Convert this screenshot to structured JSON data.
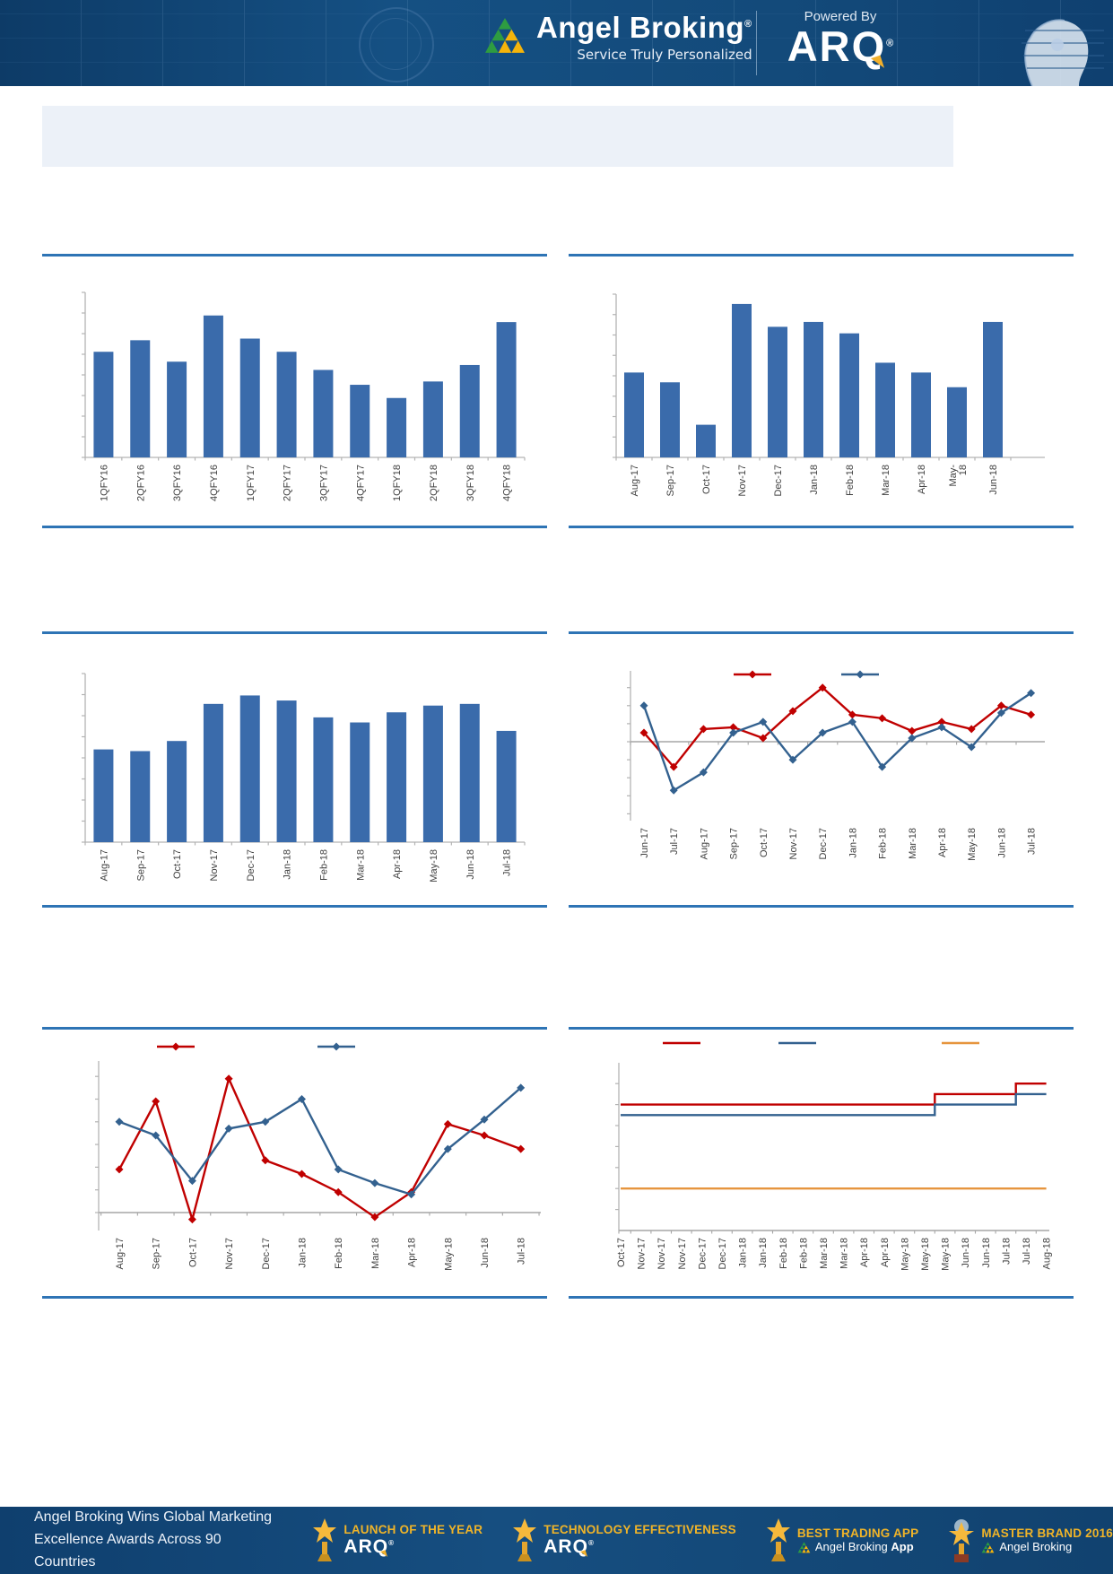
{
  "header": {
    "brand": "Angel Broking",
    "brand_reg": "®",
    "tagline": "Service Truly Personalized",
    "powered_by": "Powered By",
    "product": "ARQ",
    "product_reg": "®"
  },
  "banner": {
    "text": ""
  },
  "charts": [
    {
      "id": "quarterly-bar-chart",
      "type": "bar",
      "title": "",
      "bar_color": "#3a6bab",
      "categories": [
        "1QFY16",
        "2QFY16",
        "3QFY16",
        "4QFY16",
        "1QFY17",
        "2QFY17",
        "3QFY17",
        "4QFY17",
        "1QFY18",
        "2QFY18",
        "3QFY18",
        "4QFY18"
      ],
      "values": [
        64,
        71,
        58,
        86,
        72,
        64,
        53,
        44,
        36,
        46,
        56,
        82
      ],
      "ylabel": "",
      "ylim": [
        0,
        100
      ],
      "note": "values are relative bar heights in % of plot height; y-axis has unlabeled ticks"
    },
    {
      "id": "monthly-bar-chart-a",
      "type": "bar",
      "title": "",
      "bar_color": "#3a6bab",
      "categories": [
        "Aug-17",
        "Sep-17",
        "Oct-17",
        "Nov-17",
        "Dec-17",
        "Jan-18",
        "Feb-18",
        "Mar-18",
        "Apr-18",
        "May-\n18",
        "Jun-18"
      ],
      "values": [
        52,
        46,
        20,
        94,
        80,
        83,
        76,
        58,
        52,
        43,
        83
      ],
      "ylabel": "",
      "ylim": [
        0,
        100
      ],
      "note": "values are relative bar heights in % of plot height; y-axis has unlabeled ticks"
    },
    {
      "id": "monthly-bar-chart-b",
      "type": "bar",
      "title": "",
      "bar_color": "#3a6bab",
      "categories": [
        "Aug-17",
        "Sep-17",
        "Oct-17",
        "Nov-17",
        "Dec-17",
        "Jan-18",
        "Feb-18",
        "Mar-18",
        "Apr-18",
        "May-18",
        "Jun-18",
        "Jul-18"
      ],
      "values": [
        55,
        54,
        60,
        82,
        87,
        84,
        74,
        71,
        77,
        81,
        82,
        66
      ],
      "ylabel": "",
      "ylim": [
        0,
        100
      ],
      "note": "values are relative bar heights in % of plot height; y-axis has unlabeled ticks"
    },
    {
      "id": "dual-line-chart-a",
      "type": "line",
      "title": "",
      "categories": [
        "Jun-17",
        "Jul-17",
        "Aug-17",
        "Sep-17",
        "Oct-17",
        "Nov-17",
        "Dec-17",
        "Jan-18",
        "Feb-18",
        "Mar-18",
        "Apr-18",
        "May-18",
        "Jun-18",
        "Jul-18"
      ],
      "series": [
        {
          "name": "series-red",
          "color": "#c00000",
          "marker": "diamond",
          "values": [
            0.5,
            -1.4,
            0.7,
            0.8,
            0.2,
            1.7,
            3.0,
            1.5,
            1.3,
            0.6,
            1.1,
            0.7,
            2.0,
            1.5
          ]
        },
        {
          "name": "series-blue",
          "color": "#33618f",
          "marker": "diamond",
          "values": [
            2.0,
            -2.7,
            -1.7,
            0.5,
            1.1,
            -1.0,
            0.5,
            1.1,
            -1.4,
            0.2,
            0.8,
            -0.3,
            1.6,
            2.7
          ]
        }
      ],
      "zero_line": true,
      "legend_position": "top",
      "legend_labels": [
        "",
        ""
      ],
      "ylim": [
        -4.4,
        3.9
      ],
      "note": "unlabeled y-axis; values estimated in tick units relative to the zero line"
    },
    {
      "id": "dual-line-chart-b",
      "type": "line",
      "title": "",
      "categories": [
        "Aug-17",
        "Sep-17",
        "Oct-17",
        "Nov-17",
        "Dec-17",
        "Jan-18",
        "Feb-18",
        "Mar-18",
        "Apr-18",
        "May-18",
        "Jun-18",
        "Jul-18"
      ],
      "series": [
        {
          "name": "series-red",
          "color": "#c00000",
          "marker": "diamond",
          "values": [
            1.9,
            4.9,
            -0.3,
            5.9,
            2.3,
            1.7,
            0.9,
            -0.2,
            0.9,
            3.9,
            3.4,
            2.8
          ]
        },
        {
          "name": "series-blue",
          "color": "#33618f",
          "marker": "diamond",
          "values": [
            4.0,
            3.4,
            1.4,
            3.7,
            4.0,
            5.0,
            1.9,
            1.3,
            0.8,
            2.8,
            4.1,
            5.5
          ]
        }
      ],
      "zero_line": true,
      "legend_position": "top",
      "legend_labels": [
        "",
        ""
      ],
      "ylim": [
        -0.9,
        6.7
      ],
      "note": "unlabeled y-axis; values estimated in tick units above the x-axis baseline"
    },
    {
      "id": "triple-step-line-chart",
      "type": "line",
      "title": "",
      "categories": [
        "Oct-17",
        "Nov-17",
        "Nov-17",
        "Nov-17",
        "Dec-17",
        "Dec-17",
        "Jan-18",
        "Jan-18",
        "Feb-18",
        "Feb-18",
        "Mar-18",
        "Mar-18",
        "Apr-18",
        "Apr-18",
        "May-18",
        "May-18",
        "May-18",
        "Jun-18",
        "Jun-18",
        "Jul-18",
        "Jul-18",
        "Aug-18"
      ],
      "series": [
        {
          "name": "series-red",
          "color": "#c00000",
          "marker": "none",
          "values": [
            6,
            6,
            6,
            6,
            6,
            6,
            6,
            6,
            6,
            6,
            6,
            6,
            6,
            6,
            6,
            6,
            6.5,
            6.5,
            6.5,
            6.5,
            7,
            7
          ]
        },
        {
          "name": "series-blue",
          "color": "#33618f",
          "marker": "none",
          "values": [
            5.5,
            5.5,
            5.5,
            5.5,
            5.5,
            5.5,
            5.5,
            5.5,
            5.5,
            5.5,
            5.5,
            5.5,
            5.5,
            5.5,
            5.5,
            5.5,
            6,
            6,
            6,
            6,
            6.5,
            6.5
          ]
        },
        {
          "name": "series-orange",
          "color": "#e6953e",
          "marker": "none",
          "values": [
            2,
            2,
            2,
            2,
            2,
            2,
            2,
            2,
            2,
            2,
            2,
            2,
            2,
            2,
            2,
            2,
            2,
            2,
            2,
            2,
            2,
            2
          ]
        }
      ],
      "zero_line": false,
      "legend_position": "top",
      "legend_labels": [
        "",
        "",
        ""
      ],
      "ylim": [
        0,
        8
      ],
      "step": true,
      "note": "unlabeled y-axis; step lines estimated in tick units above the baseline"
    }
  ],
  "footer": {
    "headline_line1": "Angel Broking Wins Global Marketing",
    "headline_line2": "Excellence Awards Across 90 Countries",
    "awards": [
      {
        "title": "LAUNCH OF THE YEAR",
        "subtitle": "ARQ",
        "subtitle_reg": "®",
        "icon": "star-trophy"
      },
      {
        "title": "TECHNOLOGY EFFECTIVENESS",
        "subtitle": "ARQ",
        "subtitle_reg": "®",
        "icon": "star-trophy"
      },
      {
        "title": "BEST TRADING APP",
        "subtitle_prefix": "Angel Broking ",
        "subtitle_bold": "App",
        "icon": "star-trophy"
      },
      {
        "title": "MASTER BRAND 2016",
        "subtitle_prefix": "Angel Broking",
        "subtitle_bold": "",
        "icon": "eagle-trophy"
      }
    ],
    "accent_color": "#f0b428"
  }
}
